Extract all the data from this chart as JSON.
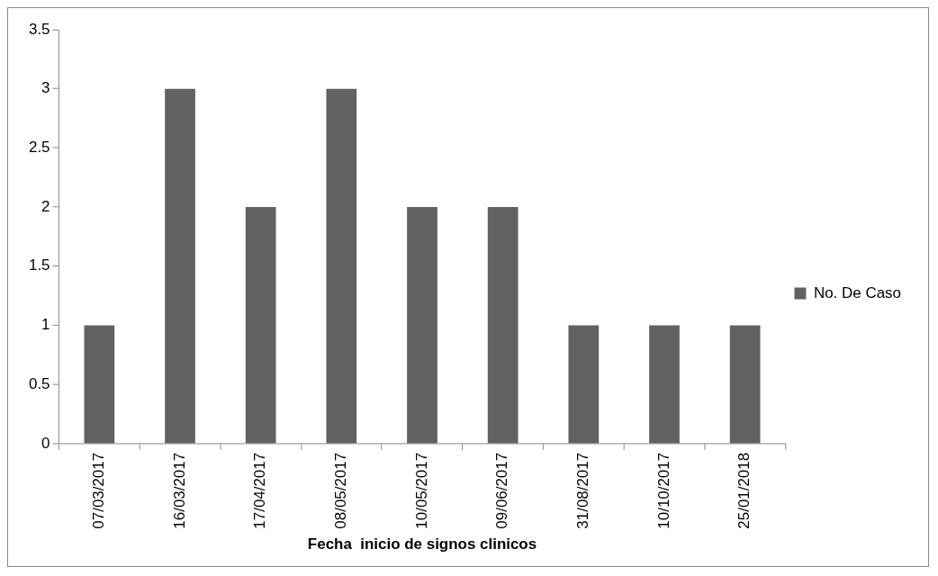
{
  "chart_data": {
    "type": "bar",
    "xlabel": "Fecha  inicio de signos clinicos",
    "categories": [
      "07/03/2017",
      "16/03/2017",
      "17/04/2017",
      "08/05/2017",
      "10/05/2017",
      "09/06/2017",
      "31/08/2017",
      "10/10/2017",
      "25/01/2018"
    ],
    "series": [
      {
        "name": "No. De Caso",
        "color": "#616161",
        "values": [
          1,
          3,
          2,
          3,
          2,
          2,
          1,
          1,
          1
        ]
      }
    ],
    "ylim": [
      0,
      3.5
    ],
    "yticks": [
      0,
      0.5,
      1,
      1.5,
      2,
      2.5,
      3,
      3.5
    ],
    "grid": false,
    "legend": "right"
  }
}
